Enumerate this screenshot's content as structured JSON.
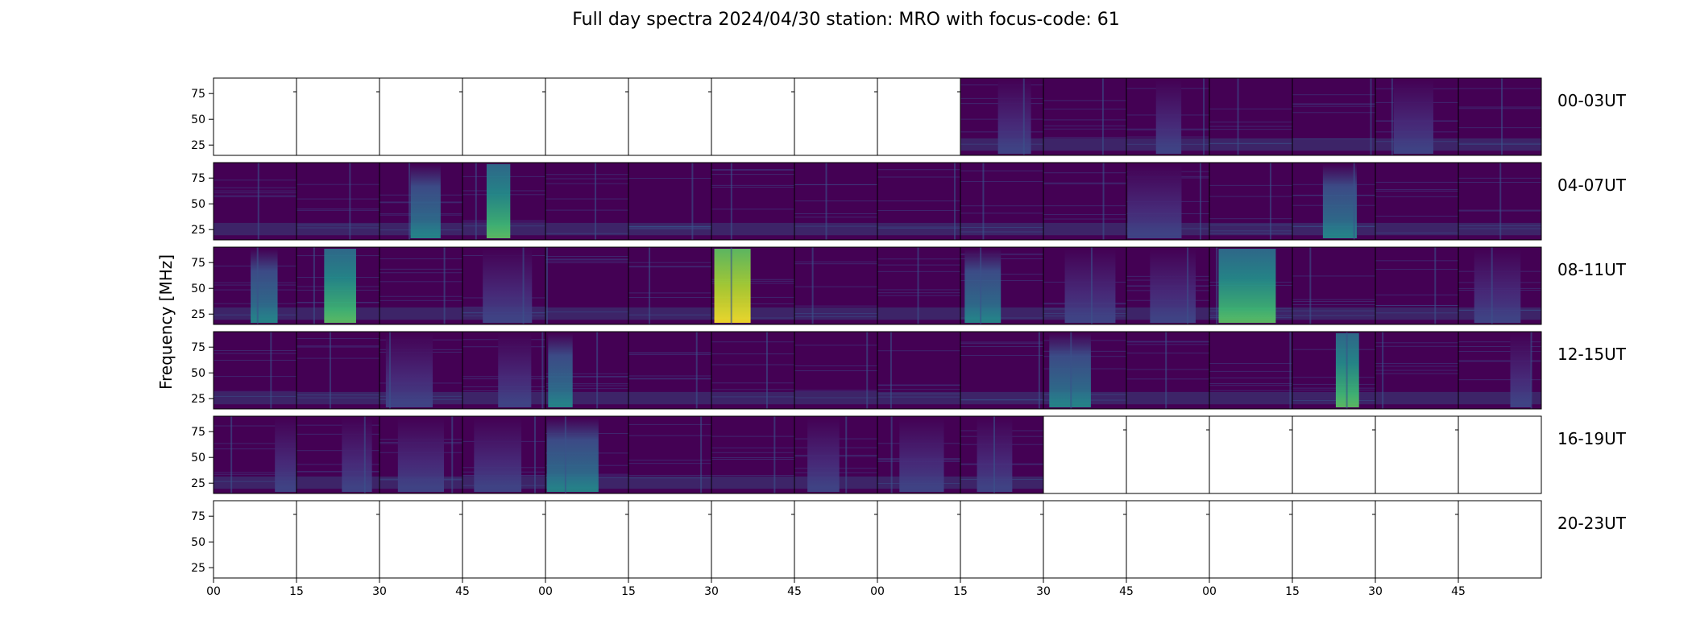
{
  "chart_data": {
    "type": "heatmap",
    "title": "Full day spectra 2024/04/30 station: MRO with focus-code: 61",
    "ylabel": "Frequency [MHz]",
    "xlabel": "",
    "ylim": [
      15,
      90
    ],
    "yticks": [
      "75",
      "50",
      "25"
    ],
    "ytick_values": [
      75,
      50,
      25
    ],
    "xticks": [
      "00",
      "15",
      "30",
      "45",
      "00",
      "15",
      "30",
      "45",
      "00",
      "15",
      "30",
      "45",
      "00",
      "15",
      "30",
      "45"
    ],
    "colormap": [
      "#440154",
      "#3b528b",
      "#21918c",
      "#5ec962",
      "#fde725"
    ],
    "rows": [
      {
        "label": "00-03UT",
        "panels": [
          0,
          0,
          0,
          0,
          0,
          0,
          0,
          0,
          0,
          2,
          1,
          2,
          1,
          1,
          2,
          1
        ]
      },
      {
        "label": "04-07UT",
        "panels": [
          1,
          1,
          3,
          4,
          1,
          1,
          1,
          1,
          1,
          1,
          1,
          2,
          1,
          3,
          1,
          1
        ]
      },
      {
        "label": "08-11UT",
        "panels": [
          3,
          4,
          1,
          2,
          1,
          1,
          5,
          1,
          1,
          3,
          2,
          2,
          4,
          1,
          1,
          2
        ]
      },
      {
        "label": "12-15UT",
        "panels": [
          1,
          1,
          2,
          2,
          3,
          1,
          1,
          1,
          1,
          1,
          3,
          1,
          1,
          4,
          1,
          2
        ]
      },
      {
        "label": "16-19UT",
        "panels": [
          2,
          2,
          2,
          2,
          3,
          1,
          1,
          2,
          2,
          2,
          0,
          0,
          0,
          0,
          0,
          0
        ]
      },
      {
        "label": "20-23UT",
        "panels": [
          0,
          0,
          0,
          0,
          0,
          0,
          0,
          0,
          0,
          0,
          0,
          0,
          0,
          0,
          0,
          0
        ]
      }
    ]
  }
}
